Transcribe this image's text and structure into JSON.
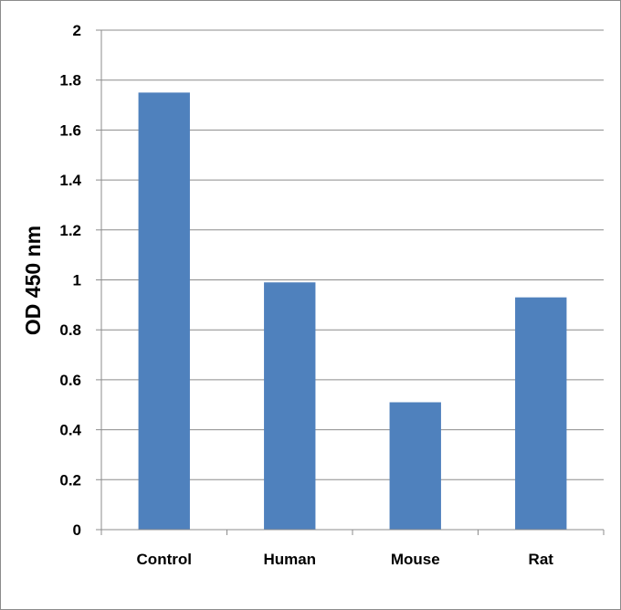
{
  "chart_data": {
    "type": "bar",
    "title": "",
    "xlabel": "",
    "ylabel": "OD 450 nm",
    "categories": [
      "Control",
      "Human",
      "Mouse",
      "Rat"
    ],
    "values": [
      1.75,
      0.99,
      0.51,
      0.93
    ],
    "ylim": [
      0,
      2
    ],
    "yticks": [
      "0",
      "0.2",
      "0.4",
      "0.6",
      "0.8",
      "1",
      "1.2",
      "1.4",
      "1.6",
      "1.8",
      "2"
    ],
    "grid": true,
    "legend": "none",
    "bar_color": "#4f81bd",
    "grid_color": "#8c8c8c"
  }
}
